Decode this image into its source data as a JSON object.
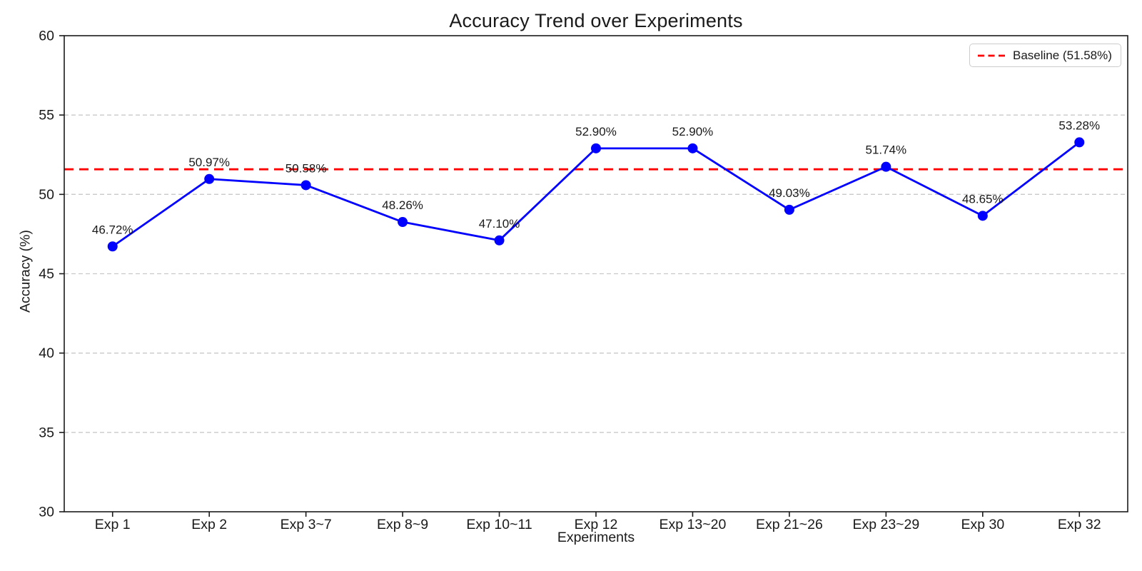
{
  "figure": {
    "title": "Accuracy Trend over Experiments",
    "xlabel": "Experiments",
    "ylabel": "Accuracy (%)"
  },
  "chart_data": {
    "type": "line",
    "title": "Accuracy Trend over Experiments",
    "xlabel": "Experiments",
    "ylabel": "Accuracy (%)",
    "categories": [
      "Exp 1",
      "Exp 2",
      "Exp 3~7",
      "Exp 8~9",
      "Exp 10~11",
      "Exp 12",
      "Exp 13~20",
      "Exp 21~26",
      "Exp 23~29",
      "Exp 30",
      "Exp 32"
    ],
    "series": [
      {
        "name": "Accuracy",
        "values": [
          46.72,
          50.97,
          50.58,
          48.26,
          47.1,
          52.9,
          52.9,
          49.03,
          51.74,
          48.65,
          53.28
        ],
        "color": "#0000ff"
      }
    ],
    "point_labels": [
      "46.72%",
      "50.97%",
      "50.58%",
      "48.26%",
      "47.10%",
      "52.90%",
      "52.90%",
      "49.03%",
      "51.74%",
      "48.65%",
      "53.28%"
    ],
    "baseline": {
      "value": 51.58,
      "label": "Baseline (51.58%)",
      "color": "#ff0000"
    },
    "ylim": [
      30,
      60
    ],
    "yticks": [
      30,
      35,
      40,
      45,
      50,
      55,
      60
    ],
    "grid": true,
    "grid_color": "#c9c9c9",
    "axis_color": "#1a1a1a",
    "legend_position": "upper right"
  }
}
